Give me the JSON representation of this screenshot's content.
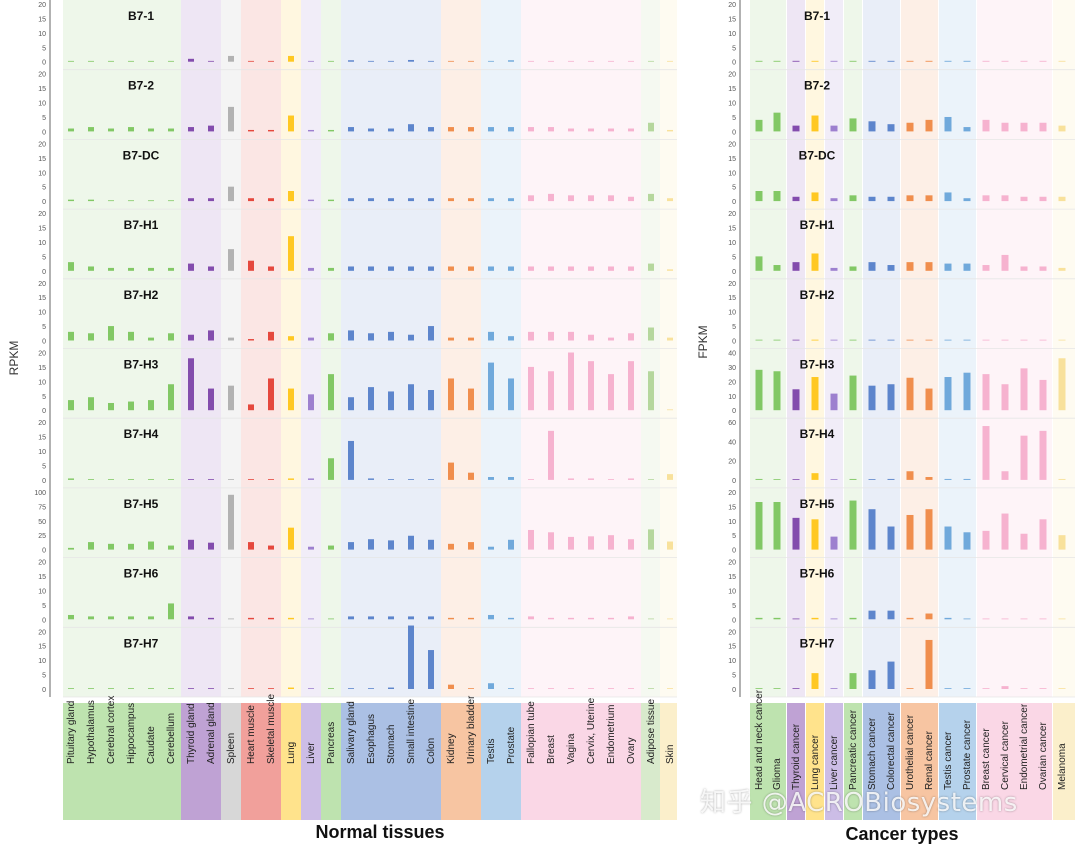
{
  "watermark": "知乎 @ACROBiosystems",
  "left_ylabel": "RPKM",
  "right_ylabel": "FPKM",
  "colors": {
    "green": "#6fc04e",
    "purple": "#7030a0",
    "gray": "#a6a6a6",
    "red": "#e02b20",
    "yellow": "#ffc000",
    "lavender": "#8e6cc8",
    "blue": "#4472c4",
    "orange": "#ed7d31",
    "sky": "#5b9bd5",
    "pink": "#f4a6c8",
    "mint": "#a9d18e",
    "cream": "#f7dc8c"
  },
  "chart_data": [
    {
      "type": "bar",
      "title": "Normal tissues",
      "ylabel": "RPKM",
      "categories": [
        "Pituitary gland",
        "Hypothalamus",
        "Cerebral cortex",
        "Hippocampus",
        "Caudate",
        "Cerebellum",
        "Thyroid gland",
        "Adrenal gland",
        "Spleen",
        "Heart muscle",
        "Skeletal muscle",
        "Lung",
        "Liver",
        "Pancreas",
        "Salivary gland",
        "Esophagus",
        "Stomach",
        "Small intestine",
        "Colon",
        "Kidney",
        "Urinary bladder",
        "Testis",
        "Prostate",
        "Fallopian tube",
        "Breast",
        "Vagina",
        "Cervix, Uterine",
        "Endometrium",
        "Ovary",
        "Adipose tissue",
        "Skin"
      ],
      "category_colors": [
        "green",
        "green",
        "green",
        "green",
        "green",
        "green",
        "purple",
        "purple",
        "gray",
        "red",
        "red",
        "yellow",
        "lavender",
        "green",
        "blue",
        "blue",
        "blue",
        "blue",
        "blue",
        "orange",
        "orange",
        "sky",
        "sky",
        "pink",
        "pink",
        "pink",
        "pink",
        "pink",
        "pink",
        "mint",
        "cream"
      ],
      "groups": [
        {
          "label": "B7-1",
          "ticks": [
            "20",
            "15",
            "10",
            "5",
            "0"
          ],
          "ymax": 20,
          "values": [
            0,
            0,
            0,
            0,
            0,
            0,
            1,
            0,
            2,
            0,
            0,
            2,
            0,
            0,
            0.5,
            0,
            0,
            0.6,
            0,
            0,
            0,
            0,
            0.5,
            0,
            0,
            0,
            0,
            0,
            0,
            0,
            0
          ]
        },
        {
          "label": "B7-2",
          "ticks": [
            "20",
            "15",
            "10",
            "5",
            "0"
          ],
          "ymax": 20,
          "values": [
            1,
            1.5,
            1,
            1.5,
            1,
            1,
            1.5,
            2,
            8.5,
            0.5,
            0.5,
            5.5,
            0.5,
            0.5,
            1.5,
            1,
            1,
            2.5,
            1.5,
            1.5,
            1.5,
            1.5,
            1.5,
            1.5,
            1.5,
            1,
            1,
            1,
            1,
            3,
            0.5
          ]
        },
        {
          "label": "B7-DC",
          "ticks": [
            "20",
            "15",
            "10",
            "5",
            "0"
          ],
          "ymax": 20,
          "values": [
            0.5,
            0.5,
            0.2,
            0.2,
            0.2,
            0.2,
            1,
            1,
            5,
            1,
            1,
            3.5,
            0.5,
            0.5,
            1,
            1,
            1,
            1,
            1,
            1,
            1,
            1,
            1,
            2,
            2.5,
            2,
            2,
            2,
            1.5,
            2.5,
            1
          ]
        },
        {
          "label": "B7-H1",
          "ticks": [
            "20",
            "15",
            "10",
            "5",
            "0"
          ],
          "ymax": 20,
          "values": [
            3,
            1.5,
            1,
            1,
            1,
            1,
            2.5,
            1.5,
            7.5,
            3.5,
            1.5,
            12,
            1,
            1,
            1.5,
            1.5,
            1.5,
            1.5,
            1.5,
            1.5,
            1.5,
            1.5,
            1.5,
            1.5,
            1.5,
            1.5,
            1.5,
            1.5,
            1.5,
            2.5,
            0.5
          ]
        },
        {
          "label": "B7-H2",
          "ticks": [
            "20",
            "15",
            "10",
            "5",
            "0"
          ],
          "ymax": 20,
          "values": [
            3,
            2.5,
            5,
            3,
            1,
            2.5,
            2,
            3.5,
            1,
            0.5,
            3,
            1.5,
            1,
            2.5,
            3.5,
            2.5,
            3,
            2,
            5,
            1,
            1,
            3,
            1.5,
            3,
            3,
            3,
            2,
            1,
            2.5,
            4.5,
            1
          ]
        },
        {
          "label": "B7-H3",
          "ticks": [
            "20",
            "15",
            "10",
            "5",
            "0"
          ],
          "ymax": 20,
          "values": [
            3.5,
            4.5,
            2.5,
            3,
            3.5,
            9,
            18,
            7.5,
            8.5,
            2,
            11,
            7.5,
            5.5,
            12.5,
            4.5,
            8,
            6.5,
            9,
            7,
            11,
            7.5,
            16.5,
            11,
            15,
            13.5,
            20,
            17,
            12.5,
            17,
            13.5,
            0
          ]
        },
        {
          "label": "B7-H4",
          "ticks": [
            "20",
            "15",
            "10",
            "5",
            "0"
          ],
          "ymax": 20,
          "values": [
            0.5,
            0,
            0,
            0,
            0,
            0,
            0,
            0,
            0,
            0,
            0,
            0.5,
            0.5,
            7.5,
            13.5,
            0.5,
            0,
            0,
            0,
            6,
            2.5,
            1,
            1,
            0,
            17,
            0.5,
            0.5,
            0,
            0.5,
            0,
            2
          ]
        },
        {
          "label": "B7-H5",
          "ticks": [
            "100",
            "75",
            "50",
            "25",
            "0"
          ],
          "ymax": 100,
          "values": [
            3,
            13,
            10,
            10,
            14,
            7,
            17,
            12,
            95,
            13,
            7,
            38,
            5,
            7,
            13,
            18,
            16,
            24,
            17,
            10,
            13,
            5,
            17,
            34,
            30,
            22,
            23,
            25,
            18,
            35,
            14
          ]
        },
        {
          "label": "B7-H6",
          "ticks": [
            "20",
            "15",
            "10",
            "5",
            "0"
          ],
          "ymax": 20,
          "values": [
            1.5,
            1,
            1,
            1,
            1,
            5.5,
            1,
            0.5,
            0,
            0.5,
            0.5,
            0.5,
            0,
            0,
            1,
            1,
            1,
            1,
            1,
            0.5,
            0.5,
            1.5,
            0.5,
            1,
            0.5,
            0.5,
            0.5,
            0.5,
            1,
            0,
            0
          ]
        },
        {
          "label": "B7-H7",
          "ticks": [
            "20",
            "15",
            "10",
            "5",
            "0"
          ],
          "ymax": 20,
          "values": [
            0,
            0,
            0,
            0,
            0,
            0,
            0,
            0,
            0,
            0,
            0,
            0.5,
            0,
            0,
            0,
            0,
            0.5,
            22,
            13.5,
            1.5,
            0,
            2,
            0,
            0,
            0,
            0,
            0,
            0,
            0,
            0,
            0
          ]
        }
      ]
    },
    {
      "type": "bar",
      "title": "Cancer types",
      "ylabel": "FPKM",
      "categories": [
        "Head and neck cancer",
        "Glioma",
        "Thyroid cancer",
        "Lung cancer",
        "Liver cancer",
        "Pancreatic cancer",
        "Stomach cancer",
        "Colorectal cancer",
        "Urothelial cancer",
        "Renal cancer",
        "Testis cancer",
        "Prostate cancer",
        "Breast cancer",
        "Cervical cancer",
        "Endometrial cancer",
        "Ovarian cancer",
        "Melanoma"
      ],
      "category_colors": [
        "green",
        "green",
        "purple",
        "yellow",
        "lavender",
        "green",
        "blue",
        "blue",
        "orange",
        "orange",
        "sky",
        "sky",
        "pink",
        "pink",
        "pink",
        "pink",
        "cream"
      ],
      "groups": [
        {
          "label": "B7-1",
          "ticks": [
            "20",
            "15",
            "10",
            "5",
            "0"
          ],
          "ymax": 20,
          "values": [
            0.3,
            0.3,
            0.3,
            0.3,
            0.3,
            0.3,
            0.3,
            0.3,
            0.3,
            0.3,
            0.3,
            0.3,
            0.3,
            0.3,
            0.3,
            0.3,
            0.3
          ]
        },
        {
          "label": "B7-2",
          "ticks": [
            "20",
            "15",
            "10",
            "5",
            "0"
          ],
          "ymax": 20,
          "values": [
            4,
            6.5,
            2,
            5.5,
            2,
            4.5,
            3.5,
            2.5,
            3,
            4,
            5,
            1.5,
            4,
            3,
            3,
            3,
            2
          ]
        },
        {
          "label": "B7-DC",
          "ticks": [
            "20",
            "15",
            "10",
            "5",
            "0"
          ],
          "ymax": 20,
          "values": [
            3.5,
            3.5,
            1.5,
            3,
            1,
            2,
            1.5,
            1.5,
            2,
            2,
            3,
            1,
            2,
            2,
            1.5,
            1.5,
            1.5
          ]
        },
        {
          "label": "B7-H1",
          "ticks": [
            "20",
            "15",
            "10",
            "5",
            "0"
          ],
          "ymax": 20,
          "values": [
            5,
            2,
            3,
            6,
            1,
            1.5,
            3,
            2,
            3,
            3,
            2.5,
            2.5,
            2,
            5.5,
            1.5,
            1.5,
            1
          ]
        },
        {
          "label": "B7-H2",
          "ticks": [
            "20",
            "15",
            "10",
            "5",
            "0"
          ],
          "ymax": 20,
          "values": [
            0,
            0,
            0,
            0,
            0,
            0,
            0,
            0,
            0,
            0,
            0,
            0,
            0,
            0,
            0,
            0,
            0
          ]
        },
        {
          "label": "B7-H3",
          "ticks": [
            "40",
            "30",
            "20",
            "10",
            "0"
          ],
          "ymax": 40,
          "values": [
            28,
            27,
            14.5,
            23,
            11.5,
            24,
            17,
            18,
            22.5,
            15,
            23,
            26,
            25,
            18,
            29,
            21,
            36
          ]
        },
        {
          "label": "B7-H4",
          "ticks": [
            "60",
            "40",
            "20",
            "0"
          ],
          "ymax": 60,
          "values": [
            1,
            0.5,
            0.5,
            7,
            0.5,
            1,
            0.5,
            1,
            9,
            3,
            1,
            1,
            56,
            9,
            46,
            51,
            1
          ]
        },
        {
          "label": "B7-H5",
          "ticks": [
            "20",
            "15",
            "10",
            "5",
            "0"
          ],
          "ymax": 20,
          "values": [
            16.5,
            16.5,
            11,
            10.5,
            4.5,
            17,
            14,
            8,
            12,
            14,
            8,
            6,
            6.5,
            12.5,
            5.5,
            10.5,
            5
          ]
        },
        {
          "label": "B7-H6",
          "ticks": [
            "20",
            "15",
            "10",
            "5",
            "0"
          ],
          "ymax": 20,
          "values": [
            0.5,
            0.5,
            0,
            0.5,
            0,
            0.5,
            3,
            3,
            0.5,
            2,
            0.5,
            0,
            0,
            0,
            0,
            0,
            0
          ]
        },
        {
          "label": "B7-H7",
          "ticks": [
            "20",
            "15",
            "10",
            "5",
            "0"
          ],
          "ymax": 20,
          "values": [
            0,
            0,
            0,
            5.5,
            0,
            5.5,
            6.5,
            9.5,
            0,
            17,
            0,
            0,
            0,
            1,
            0,
            0,
            0
          ]
        }
      ]
    }
  ]
}
